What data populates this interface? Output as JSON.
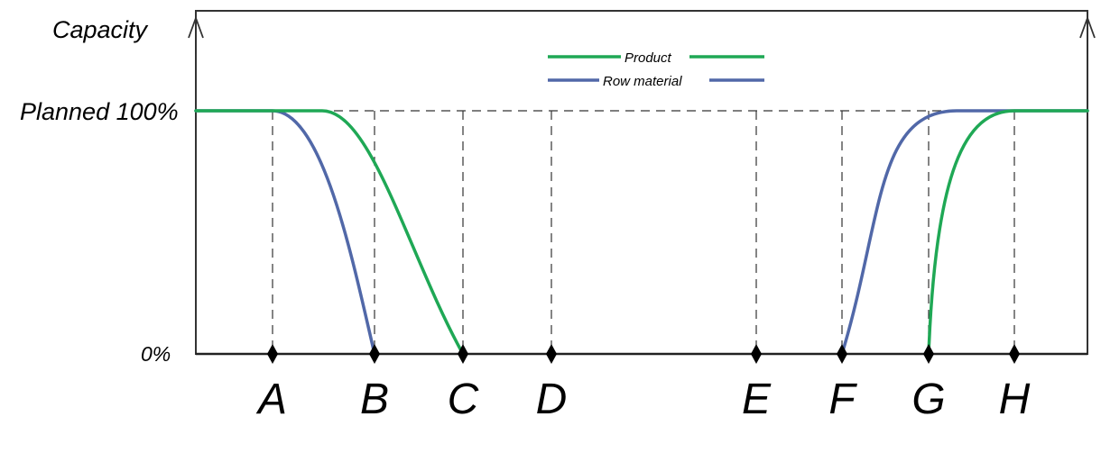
{
  "chart_data": {
    "type": "line",
    "ylabel": "Capacity",
    "y_ticks": [
      {
        "label": "Planned 100%",
        "value": 100
      },
      {
        "label": "0%",
        "value": 0
      }
    ],
    "x_ticks": [
      "A",
      "B",
      "C",
      "D",
      "E",
      "F",
      "G",
      "H"
    ],
    "legend_placement": "top-center",
    "grid": "dashed guides at 100% and at each x tick",
    "series": [
      {
        "name": "Product",
        "color": "#1fa855",
        "points": [
          {
            "x": "start",
            "y": 100
          },
          {
            "x": "between A and B",
            "y": 100
          },
          {
            "x": "C",
            "y": 0
          },
          {
            "x": "G",
            "y": 0
          },
          {
            "x": "H",
            "y": 100
          },
          {
            "x": "end",
            "y": 100
          }
        ]
      },
      {
        "name": "Row material",
        "color": "#5168a8",
        "points": [
          {
            "x": "start",
            "y": 100
          },
          {
            "x": "A",
            "y": 100
          },
          {
            "x": "B",
            "y": 0
          },
          {
            "x": "F",
            "y": 0
          },
          {
            "x": "between G and H",
            "y": 100
          },
          {
            "x": "end",
            "y": 100
          }
        ]
      }
    ]
  }
}
